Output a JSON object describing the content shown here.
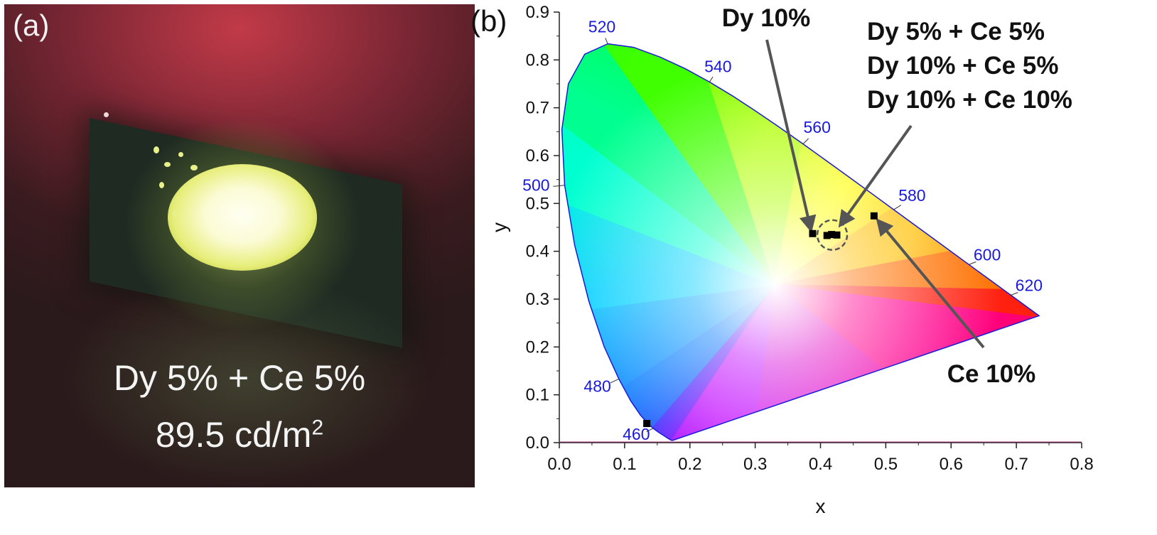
{
  "panel_a": {
    "label": "(a)",
    "caption_line1": "Dy 5% + Ce 5%",
    "caption_line2_value": "89.5 cd/m",
    "caption_line2_sup": "2"
  },
  "panel_b": {
    "label": "(b)"
  },
  "chart_data": {
    "type": "scatter",
    "title": "",
    "xlabel": "x",
    "ylabel": "y",
    "xlim": [
      0.0,
      0.8
    ],
    "ylim": [
      0.0,
      0.9
    ],
    "xticks": [
      "0.0",
      "0.1",
      "0.2",
      "0.3",
      "0.4",
      "0.5",
      "0.6",
      "0.7",
      "0.8"
    ],
    "yticks": [
      "0.0",
      "0.1",
      "0.2",
      "0.3",
      "0.4",
      "0.5",
      "0.6",
      "0.7",
      "0.8",
      "0.9"
    ],
    "grid": false,
    "background": "CIE 1931 chromaticity diagram",
    "wavelength_labels": [
      {
        "text": "460",
        "x": 0.144,
        "y": 0.03
      },
      {
        "text": "480",
        "x": 0.091,
        "y": 0.133
      },
      {
        "text": "500",
        "x": 0.008,
        "y": 0.538
      },
      {
        "text": "520",
        "x": 0.074,
        "y": 0.834
      },
      {
        "text": "540",
        "x": 0.23,
        "y": 0.754
      },
      {
        "text": "560",
        "x": 0.373,
        "y": 0.624
      },
      {
        "text": "580",
        "x": 0.512,
        "y": 0.487
      },
      {
        "text": "600",
        "x": 0.627,
        "y": 0.372
      },
      {
        "text": "620",
        "x": 0.691,
        "y": 0.308
      }
    ],
    "points": [
      {
        "x": 0.134,
        "y": 0.04
      },
      {
        "x": 0.388,
        "y": 0.437
      },
      {
        "x": 0.41,
        "y": 0.433
      },
      {
        "x": 0.417,
        "y": 0.435
      },
      {
        "x": 0.425,
        "y": 0.434
      },
      {
        "x": 0.482,
        "y": 0.474
      }
    ],
    "annotations": [
      {
        "text": "Dy 10%",
        "target": {
          "x": 0.388,
          "y": 0.437
        }
      },
      {
        "text": "Dy 5% + Ce 5%",
        "target": {
          "x": 0.42,
          "y": 0.433
        }
      },
      {
        "text": "Dy 10% + Ce 5%",
        "target": {
          "x": 0.42,
          "y": 0.433
        }
      },
      {
        "text": "Dy 10% + Ce 10%",
        "target": {
          "x": 0.42,
          "y": 0.433
        }
      },
      {
        "text": "Ce 10%",
        "target": {
          "x": 0.482,
          "y": 0.474
        }
      }
    ],
    "colors": {
      "locus": "#1a1adb",
      "arrow": "#555555",
      "point": "#000000",
      "wavelength_label": "#1a1adb"
    }
  }
}
